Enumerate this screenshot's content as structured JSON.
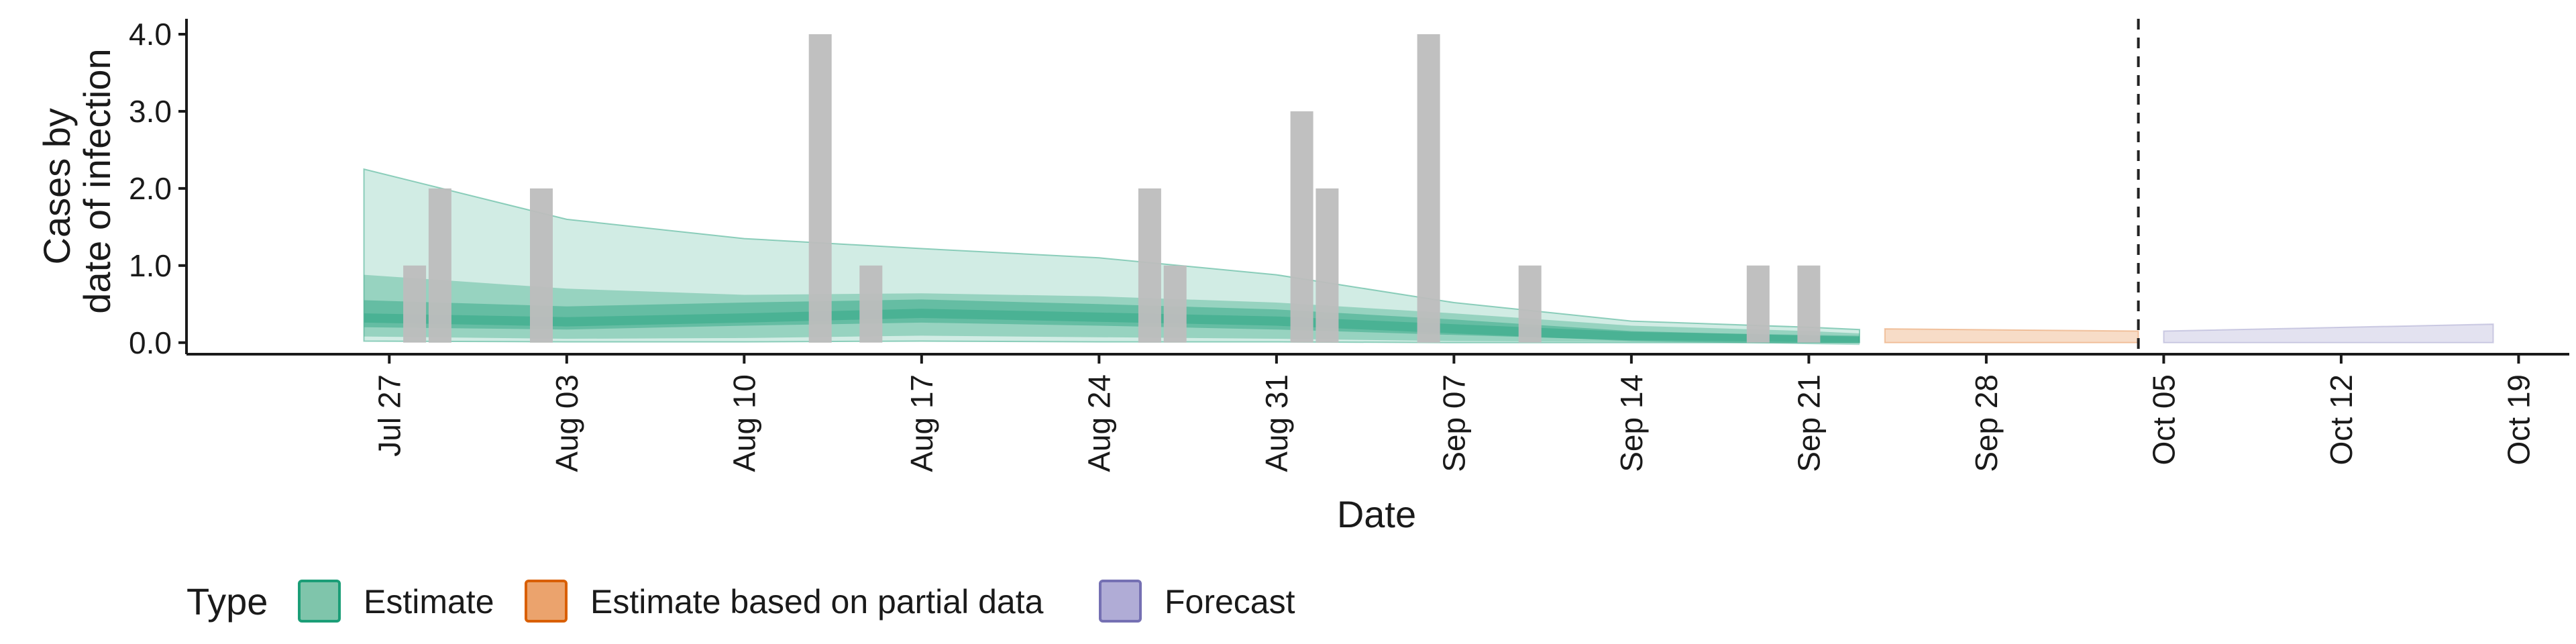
{
  "chart_data": {
    "type": "bar",
    "title": "",
    "xlabel": "Date",
    "ylabel": [
      "Cases by",
      "date of infection"
    ],
    "ylim": [
      -0.15,
      4.2
    ],
    "y_ticks": [
      0,
      1,
      2,
      3,
      4
    ],
    "y_tick_labels": [
      "0.0",
      "1.0",
      "2.0",
      "3.0",
      "4.0"
    ],
    "x_range": [
      "2021-07-19",
      "2021-10-21"
    ],
    "x_ticks": [
      "2021-07-27",
      "2021-08-03",
      "2021-08-10",
      "2021-08-17",
      "2021-08-24",
      "2021-08-31",
      "2021-09-07",
      "2021-09-14",
      "2021-09-21",
      "2021-09-28",
      "2021-10-05",
      "2021-10-12",
      "2021-10-19"
    ],
    "x_tick_labels": [
      "Jul 27",
      "Aug 03",
      "Aug 10",
      "Aug 17",
      "Aug 24",
      "Aug 31",
      "Sep 07",
      "Sep 14",
      "Sep 21",
      "Sep 28",
      "Oct 05",
      "Oct 12",
      "Oct 19"
    ],
    "grid": false,
    "forecast_date": "2021-10-04",
    "legend": {
      "title": "Type",
      "position": "bottom",
      "items": [
        {
          "label": "Estimate",
          "fill": "#7fc5ab",
          "stroke": "#1b9e77"
        },
        {
          "label": "Estimate based on partial data",
          "fill": "#eba36d",
          "stroke": "#d95f02"
        },
        {
          "label": "Forecast",
          "fill": "#b0acd6",
          "stroke": "#7570b3"
        }
      ]
    },
    "colors": {
      "bars": "#bdbdbd",
      "estimate": "#1b9e77",
      "partial": "#d95f02",
      "forecast": "#7570b3",
      "forecast_line": "#222222"
    },
    "observed_cases": [
      {
        "date": "2021-07-28",
        "value": 1
      },
      {
        "date": "2021-07-29",
        "value": 2
      },
      {
        "date": "2021-08-02",
        "value": 2
      },
      {
        "date": "2021-08-13",
        "value": 4
      },
      {
        "date": "2021-08-15",
        "value": 1
      },
      {
        "date": "2021-08-26",
        "value": 2
      },
      {
        "date": "2021-08-27",
        "value": 1
      },
      {
        "date": "2021-09-01",
        "value": 3
      },
      {
        "date": "2021-09-02",
        "value": 2
      },
      {
        "date": "2021-09-06",
        "value": 4
      },
      {
        "date": "2021-09-10",
        "value": 1
      },
      {
        "date": "2021-09-19",
        "value": 1
      },
      {
        "date": "2021-09-21",
        "value": 1
      }
    ],
    "series": [
      {
        "type": "Estimate",
        "date": [
          "2021-07-26",
          "2021-08-03",
          "2021-08-10",
          "2021-08-17",
          "2021-08-24",
          "2021-08-31",
          "2021-09-07",
          "2021-09-14",
          "2021-09-21",
          "2021-09-23"
        ],
        "median": [
          0.32,
          0.27,
          0.32,
          0.38,
          0.33,
          0.28,
          0.18,
          0.08,
          0.04,
          0.03
        ],
        "lower_50": [
          0.2,
          0.17,
          0.22,
          0.26,
          0.22,
          0.17,
          0.1,
          0.03,
          0.01,
          0.01
        ],
        "upper_50": [
          0.55,
          0.47,
          0.52,
          0.56,
          0.5,
          0.43,
          0.3,
          0.15,
          0.09,
          0.08
        ],
        "lower_90": [
          0.08,
          0.05,
          0.06,
          0.09,
          0.07,
          0.05,
          0.02,
          0.01,
          0.0,
          0.0
        ],
        "upper_90": [
          0.88,
          0.7,
          0.62,
          0.64,
          0.6,
          0.52,
          0.38,
          0.22,
          0.15,
          0.12
        ],
        "lower_outer": [
          0.02,
          0.01,
          0.01,
          0.02,
          0.01,
          0.01,
          0.0,
          0.0,
          0.0,
          0.0
        ],
        "upper_outer": [
          2.25,
          1.6,
          1.35,
          1.22,
          1.1,
          0.88,
          0.52,
          0.28,
          0.2,
          0.17
        ]
      },
      {
        "type": "Estimate based on partial data",
        "date": [
          "2021-09-24",
          "2021-10-04"
        ],
        "lower": [
          0.0,
          0.0
        ],
        "upper": [
          0.18,
          0.15
        ]
      },
      {
        "type": "Forecast",
        "date": [
          "2021-10-05",
          "2021-10-18"
        ],
        "lower": [
          0.0,
          0.0
        ],
        "upper": [
          0.15,
          0.24
        ]
      }
    ]
  }
}
